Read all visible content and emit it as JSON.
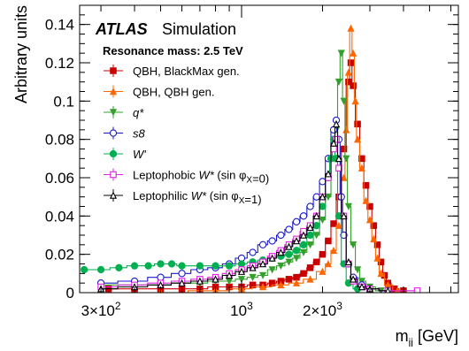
{
  "chart_data": {
    "type": "line",
    "brand": "ATLAS",
    "brand_suffix": "Simulation",
    "subtitle": "Resonance mass: 2.5 TeV",
    "xlabel": {
      "main": "m",
      "sub": "jj",
      "unit": " [GeV]"
    },
    "ylabel": "Arbitrary units",
    "xscale": "log",
    "xlim": [
      250,
      6400
    ],
    "ylim": [
      0,
      0.15
    ],
    "grid": false,
    "legend_position": "top-left",
    "x_tick_labels": [
      {
        "value": 300,
        "mantissa": "3×10",
        "exp": "2"
      },
      {
        "value": 1000,
        "mantissa": "10",
        "exp": "3"
      },
      {
        "value": 2000,
        "mantissa": "2×10",
        "exp": "3"
      }
    ],
    "y_ticks": [
      0,
      0.02,
      0.04,
      0.06,
      0.08,
      0.1,
      0.12,
      0.14
    ],
    "y_tick_labels": [
      "0",
      "0.02",
      "0.04",
      "0.06",
      "0.08",
      "0.1",
      "0.12",
      "0.14"
    ],
    "series": [
      {
        "name_parts": [
          {
            "t": "QBH, BlackMax gen.",
            "i": false
          }
        ],
        "color": "#c80000",
        "marker": "square-filled",
        "points": [
          [
            320,
            0.002
          ],
          [
            400,
            0.002
          ],
          [
            500,
            0.002
          ],
          [
            600,
            0.002
          ],
          [
            700,
            0.002
          ],
          [
            800,
            0.003
          ],
          [
            900,
            0.003
          ],
          [
            1000,
            0.003
          ],
          [
            1100,
            0.004
          ],
          [
            1200,
            0.004
          ],
          [
            1300,
            0.005
          ],
          [
            1400,
            0.006
          ],
          [
            1500,
            0.007
          ],
          [
            1600,
            0.008
          ],
          [
            1700,
            0.01
          ],
          [
            1800,
            0.013
          ],
          [
            1900,
            0.016
          ],
          [
            2000,
            0.02
          ],
          [
            2100,
            0.027
          ],
          [
            2200,
            0.036
          ],
          [
            2300,
            0.05
          ],
          [
            2400,
            0.075
          ],
          [
            2500,
            0.11
          ],
          [
            2550,
            0.12
          ],
          [
            2600,
            0.108
          ],
          [
            2700,
            0.088
          ],
          [
            2800,
            0.07
          ],
          [
            2900,
            0.056
          ],
          [
            3000,
            0.045
          ],
          [
            3100,
            0.035
          ],
          [
            3200,
            0.025
          ],
          [
            3300,
            0.016
          ],
          [
            3400,
            0.009
          ],
          [
            3500,
            0.005
          ],
          [
            3700,
            0.002
          ],
          [
            4000,
            0.001
          ]
        ]
      },
      {
        "name_parts": [
          {
            "t": "QBH, QBH gen.",
            "i": false
          }
        ],
        "color": "#ff6600",
        "marker": "triangle-filled",
        "points": [
          [
            500,
            0.0
          ],
          [
            800,
            0.001
          ],
          [
            1000,
            0.002
          ],
          [
            1200,
            0.003
          ],
          [
            1400,
            0.004
          ],
          [
            1600,
            0.005
          ],
          [
            1800,
            0.007
          ],
          [
            2000,
            0.011
          ],
          [
            2100,
            0.015
          ],
          [
            2200,
            0.022
          ],
          [
            2300,
            0.035
          ],
          [
            2400,
            0.06
          ],
          [
            2450,
            0.085
          ],
          [
            2500,
            0.115
          ],
          [
            2550,
            0.138
          ],
          [
            2600,
            0.125
          ],
          [
            2650,
            0.1
          ],
          [
            2700,
            0.08
          ],
          [
            2800,
            0.065
          ],
          [
            2900,
            0.048
          ],
          [
            3000,
            0.038
          ],
          [
            3100,
            0.028
          ],
          [
            3200,
            0.018
          ],
          [
            3300,
            0.01
          ],
          [
            3500,
            0.004
          ],
          [
            3800,
            0.001
          ]
        ]
      },
      {
        "name_parts": [
          {
            "t": "q*",
            "i": true
          }
        ],
        "color": "#33a02c",
        "marker": "triangle-down-filled",
        "points": [
          [
            300,
            0.004
          ],
          [
            400,
            0.004
          ],
          [
            500,
            0.004
          ],
          [
            600,
            0.005
          ],
          [
            700,
            0.005
          ],
          [
            800,
            0.006
          ],
          [
            900,
            0.006
          ],
          [
            1000,
            0.007
          ],
          [
            1100,
            0.008
          ],
          [
            1200,
            0.009
          ],
          [
            1300,
            0.012
          ],
          [
            1400,
            0.014
          ],
          [
            1500,
            0.016
          ],
          [
            1600,
            0.018
          ],
          [
            1700,
            0.021
          ],
          [
            1800,
            0.025
          ],
          [
            1900,
            0.03
          ],
          [
            2000,
            0.038
          ],
          [
            2100,
            0.05
          ],
          [
            2200,
            0.07
          ],
          [
            2250,
            0.085
          ],
          [
            2300,
            0.11
          ],
          [
            2350,
            0.125
          ],
          [
            2400,
            0.1
          ],
          [
            2450,
            0.07
          ],
          [
            2500,
            0.045
          ],
          [
            2600,
            0.025
          ],
          [
            2700,
            0.012
          ],
          [
            2800,
            0.006
          ],
          [
            3000,
            0.003
          ],
          [
            3300,
            0.001
          ]
        ]
      },
      {
        "name_parts": [
          {
            "t": "s8",
            "i": true
          }
        ],
        "color": "#1a1acc",
        "marker": "circle-open",
        "points": [
          [
            300,
            0.005
          ],
          [
            400,
            0.006
          ],
          [
            500,
            0.008
          ],
          [
            600,
            0.01
          ],
          [
            700,
            0.012
          ],
          [
            800,
            0.013
          ],
          [
            900,
            0.015
          ],
          [
            1000,
            0.018
          ],
          [
            1100,
            0.021
          ],
          [
            1200,
            0.025
          ],
          [
            1300,
            0.027
          ],
          [
            1400,
            0.03
          ],
          [
            1500,
            0.033
          ],
          [
            1600,
            0.037
          ],
          [
            1700,
            0.04
          ],
          [
            1800,
            0.045
          ],
          [
            1900,
            0.05
          ],
          [
            2000,
            0.058
          ],
          [
            2100,
            0.07
          ],
          [
            2200,
            0.085
          ],
          [
            2250,
            0.09
          ],
          [
            2300,
            0.08
          ],
          [
            2350,
            0.05
          ],
          [
            2400,
            0.03
          ],
          [
            2500,
            0.015
          ],
          [
            2600,
            0.008
          ],
          [
            2800,
            0.004
          ],
          [
            3000,
            0.002
          ],
          [
            3500,
            0.001
          ]
        ]
      },
      {
        "name_parts": [
          {
            "t": "W'",
            "i": true
          }
        ],
        "color": "#00b050",
        "marker": "circle-filled",
        "points": [
          [
            260,
            0.012
          ],
          [
            300,
            0.012
          ],
          [
            350,
            0.013
          ],
          [
            400,
            0.014
          ],
          [
            450,
            0.014
          ],
          [
            500,
            0.015
          ],
          [
            550,
            0.015
          ],
          [
            600,
            0.014
          ],
          [
            700,
            0.014
          ],
          [
            800,
            0.014
          ],
          [
            900,
            0.014
          ],
          [
            1000,
            0.015
          ],
          [
            1100,
            0.016
          ],
          [
            1200,
            0.017
          ],
          [
            1300,
            0.018
          ],
          [
            1400,
            0.019
          ],
          [
            1500,
            0.02
          ],
          [
            1600,
            0.022
          ],
          [
            1700,
            0.025
          ],
          [
            1800,
            0.03
          ],
          [
            1900,
            0.035
          ],
          [
            2000,
            0.045
          ],
          [
            2100,
            0.06
          ],
          [
            2150,
            0.07
          ],
          [
            2200,
            0.08
          ],
          [
            2250,
            0.07
          ],
          [
            2300,
            0.04
          ],
          [
            2400,
            0.015
          ],
          [
            2500,
            0.005
          ],
          [
            2700,
            0.002
          ]
        ]
      },
      {
        "name_parts": [
          {
            "t": "Leptophobic ",
            "i": false
          },
          {
            "t": "W*",
            "i": true
          },
          {
            "t": " (sin φ",
            "i": false
          },
          {
            "t": "X",
            "i": false,
            "sub": true
          },
          {
            "t": "=0)",
            "i": false
          }
        ],
        "color": "#e020e0",
        "marker": "square-open",
        "points": [
          [
            300,
            0.003
          ],
          [
            400,
            0.004
          ],
          [
            500,
            0.005
          ],
          [
            600,
            0.006
          ],
          [
            700,
            0.007
          ],
          [
            800,
            0.008
          ],
          [
            900,
            0.01
          ],
          [
            1000,
            0.012
          ],
          [
            1100,
            0.014
          ],
          [
            1200,
            0.016
          ],
          [
            1300,
            0.019
          ],
          [
            1400,
            0.022
          ],
          [
            1500,
            0.025
          ],
          [
            1600,
            0.028
          ],
          [
            1700,
            0.032
          ],
          [
            1800,
            0.035
          ],
          [
            1900,
            0.04
          ],
          [
            2000,
            0.05
          ],
          [
            2100,
            0.06
          ],
          [
            2200,
            0.075
          ],
          [
            2250,
            0.08
          ],
          [
            2300,
            0.065
          ],
          [
            2400,
            0.04
          ],
          [
            2500,
            0.015
          ],
          [
            2600,
            0.006
          ],
          [
            2800,
            0.003
          ],
          [
            3000,
            0.002
          ],
          [
            3500,
            0.001
          ],
          [
            4500,
            0.001
          ]
        ]
      },
      {
        "name_parts": [
          {
            "t": "Leptophilic ",
            "i": false
          },
          {
            "t": "W*",
            "i": true
          },
          {
            "t": " (sin φ",
            "i": false
          },
          {
            "t": "X",
            "i": false,
            "sub": true
          },
          {
            "t": "=1)",
            "i": false
          }
        ],
        "color": "#000000",
        "marker": "triangle-open",
        "points": [
          [
            300,
            0.002
          ],
          [
            400,
            0.003
          ],
          [
            500,
            0.004
          ],
          [
            600,
            0.005
          ],
          [
            700,
            0.006
          ],
          [
            800,
            0.007
          ],
          [
            900,
            0.009
          ],
          [
            1000,
            0.011
          ],
          [
            1100,
            0.013
          ],
          [
            1200,
            0.015
          ],
          [
            1300,
            0.018
          ],
          [
            1400,
            0.021
          ],
          [
            1500,
            0.024
          ],
          [
            1600,
            0.027
          ],
          [
            1700,
            0.03
          ],
          [
            1800,
            0.034
          ],
          [
            1900,
            0.04
          ],
          [
            2000,
            0.05
          ],
          [
            2100,
            0.062
          ],
          [
            2200,
            0.078
          ],
          [
            2250,
            0.088
          ],
          [
            2300,
            0.07
          ],
          [
            2400,
            0.04
          ],
          [
            2500,
            0.016
          ],
          [
            2600,
            0.007
          ],
          [
            2800,
            0.003
          ],
          [
            3000,
            0.002
          ],
          [
            3500,
            0.001
          ]
        ]
      }
    ]
  }
}
